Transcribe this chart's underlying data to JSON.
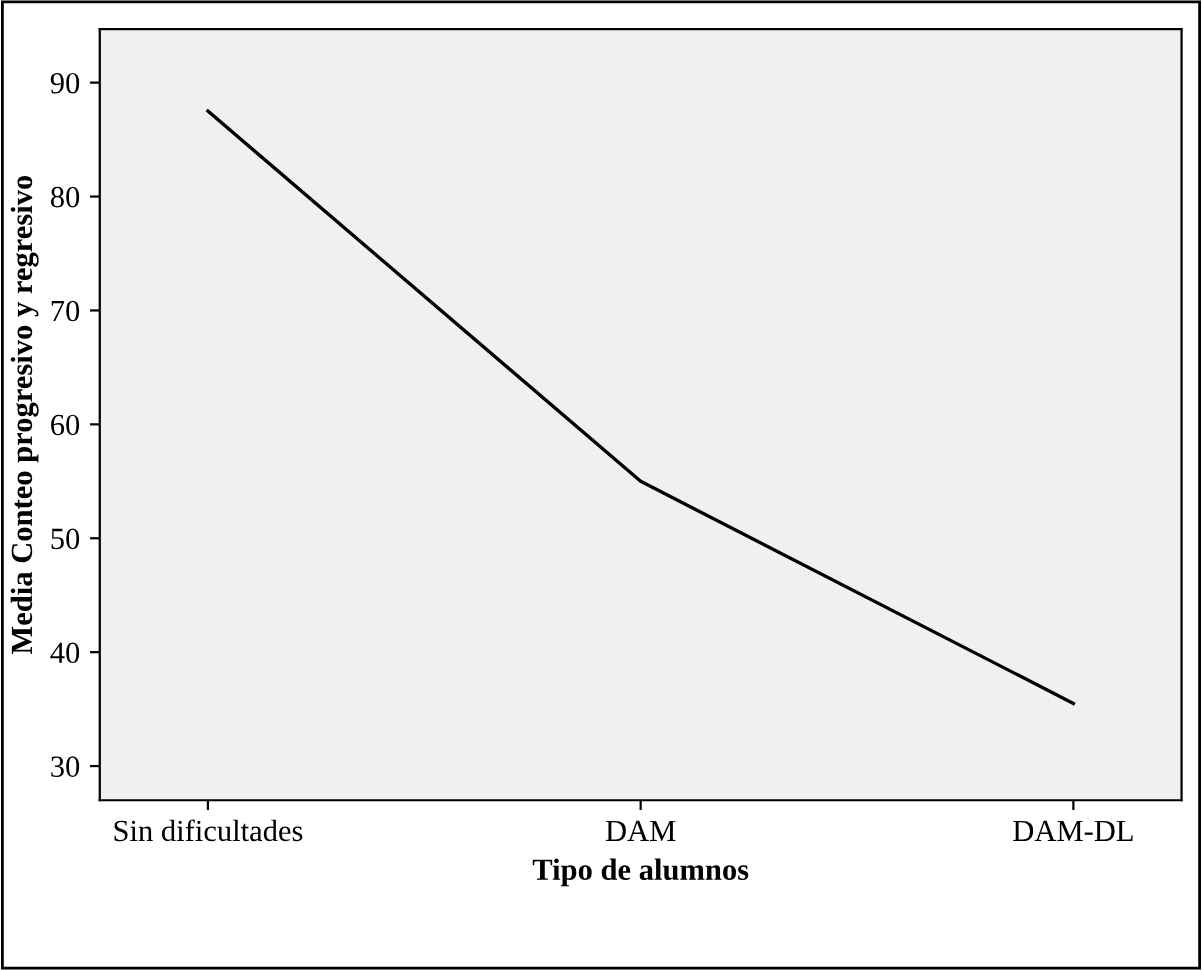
{
  "chart_data": {
    "type": "line",
    "xlabel": "Tipo de alumnos",
    "ylabel": "Media Conteo progresivo y regresivo",
    "categories": [
      "Sin dificultades",
      "DAM",
      "DAM-DL"
    ],
    "series": [
      {
        "color": "#000000",
        "values": [
          87.5,
          55.0,
          35.5
        ]
      }
    ],
    "ylim": [
      27,
      94.7
    ],
    "yticks": [
      30,
      40,
      50,
      60,
      70,
      80,
      90
    ],
    "grid": false,
    "legend": false,
    "marker": "none",
    "line_style": "solid"
  }
}
